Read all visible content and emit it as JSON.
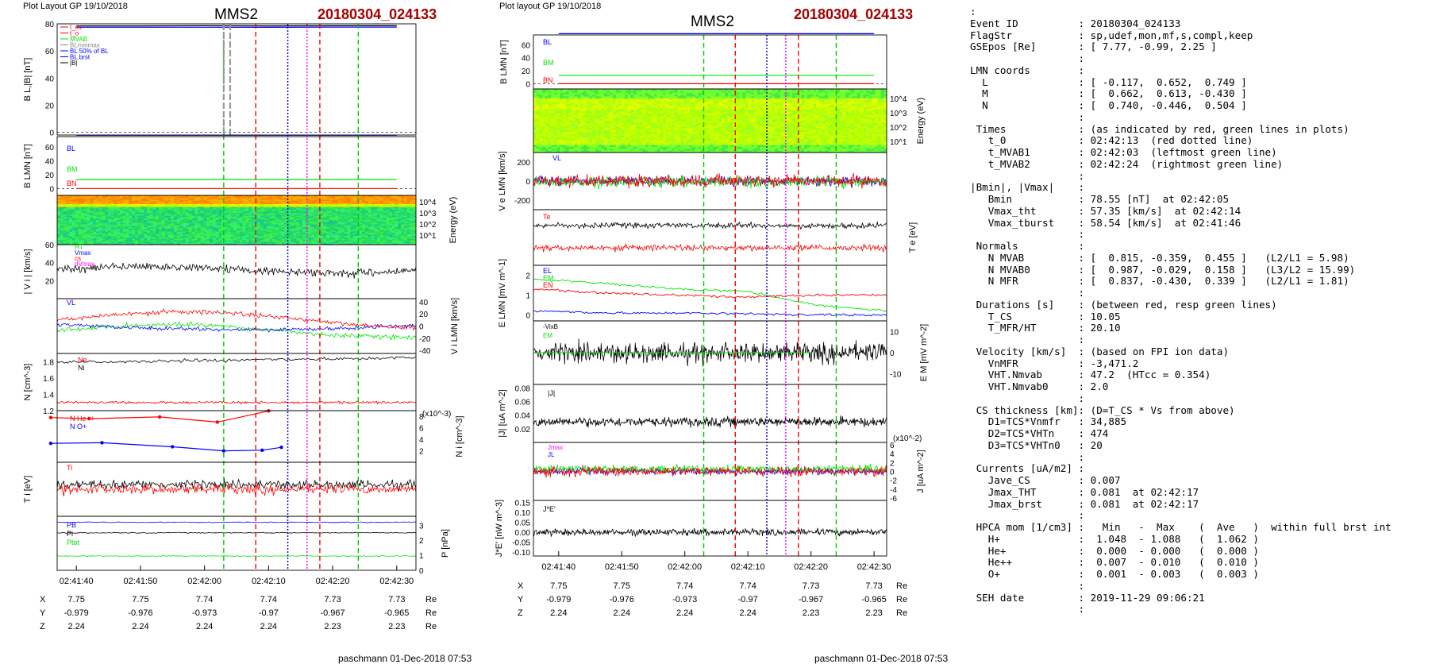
{
  "left_header": {
    "layout": "Plot Layout GP 19/10/2018",
    "spacecraft": "MMS2",
    "event": "20180304_024133"
  },
  "right_header": {
    "layout": "Plot layout GP 19/10/2018",
    "spacecraft": "MMS2",
    "event": "20180304_024133"
  },
  "footers": {
    "left": "paschmann 01-Dec-2018 07:53",
    "right": "paschmann 01-Dec-2018 07:53"
  },
  "colors": {
    "L": "#0000ff",
    "M": "#00e600",
    "N": "#ff0000",
    "black": "#000000",
    "magenta": "#ff00ff",
    "event_title": "#a50000"
  },
  "time_ticks": [
    "02:41:40",
    "02:41:50",
    "02:42:00",
    "02:42:10",
    "02:42:20",
    "02:42:30"
  ],
  "position_table": {
    "labels": [
      "X",
      "Y",
      "Z"
    ],
    "unit": "Re",
    "rows": [
      [
        "7.75",
        "7.75",
        "7.74",
        "7.74",
        "7.73",
        "7.73"
      ],
      [
        "-0.979",
        "-0.976",
        "-0.973",
        "-0.97",
        "-0.967",
        "-0.965"
      ],
      [
        "2.24",
        "2.24",
        "2.24",
        "2.24",
        "2.23",
        "2.23"
      ]
    ]
  },
  "chart_data": [
    {
      "type": "line",
      "figure": "left",
      "x": [
        "02:41:40",
        "02:41:50",
        "02:42:00",
        "02:42:10",
        "02:42:20",
        "02:42:30"
      ],
      "markers": {
        "t_0": "02:42:13",
        "t_MVAB1": "02:42:03",
        "t_MVAB2": "02:42:24",
        "current_sheet": [
          "02:42:08",
          "02:42:18"
        ],
        "burst": [
          "02:42:03",
          "02:42:04"
        ],
        "magenta": "02:42:16"
      },
      "panels": [
        {
          "id": "b-total",
          "ylabel": "B L,|B| [nT]",
          "ylim": [
            -2,
            80
          ],
          "ticks": [
            "80",
            "60",
            "40",
            "20",
            "0"
          ],
          "legend": [
            "t_cs",
            "t_o",
            "MVAB",
            "BLminmax",
            "BL 50% of BL",
            "BL brst",
            "|B|"
          ],
          "series": [
            {
              "name": "BL",
              "color": "blue",
              "values": [
                77.5,
                77.5,
                77.5,
                77.4,
                77.6,
                77.6
              ]
            },
            {
              "name": "|B|",
              "color": "black",
              "values": [
                78.5,
                78.5,
                78.6,
                78.5,
                78.6,
                78.6
              ]
            }
          ]
        },
        {
          "id": "b-lmn",
          "ylabel": "B LMN [nT]",
          "ylim": [
            -10,
            75
          ],
          "ticks": [
            "60",
            "40",
            "20",
            "0"
          ],
          "series": [
            {
              "name": "BL",
              "color": "blue",
              "values": [
                77,
                77,
                77,
                77,
                77,
                77
              ]
            },
            {
              "name": "BM",
              "color": "green",
              "values": [
                13,
                13,
                13,
                13,
                13,
                13
              ]
            },
            {
              "name": "BN",
              "color": "red",
              "values": [
                0,
                0,
                0,
                0,
                0,
                0
              ]
            }
          ]
        },
        {
          "id": "ion-spectrogram",
          "type": "heatmap",
          "ylabel": "Energy (eV)",
          "ticks": [
            "10^4",
            "10^3",
            "10^2",
            "10^1"
          ]
        },
        {
          "id": "vi-mag",
          "ylabel": "| V i | [km/s]",
          "ylim": [
            0,
            60
          ],
          "ticks": [
            "60",
            "40",
            "20"
          ],
          "legend": [
            "HT",
            "Vmax",
            "cs",
            "dVmax"
          ]
        },
        {
          "id": "vi-lmn",
          "ylabel": "V i LMN [km/s]",
          "ylim": [
            -45,
            45
          ],
          "ticks": [
            "40",
            "20",
            "0",
            "-20",
            "-40"
          ]
        },
        {
          "id": "density",
          "ylabel": "N [cm^-3]",
          "ylim": [
            1.2,
            1.9
          ],
          "ticks": [
            "1.8",
            "1.6",
            "1.4",
            "1.2"
          ],
          "legend": [
            "Ne",
            "Ni"
          ]
        },
        {
          "id": "hpca-density",
          "ylabel": "N i [cm^-3]",
          "ylim": [
            0,
            9
          ],
          "ticks": [
            "8",
            "6",
            "4",
            "2"
          ],
          "scale_note": "(x10^-3)",
          "series": [
            {
              "name": "He++",
              "color": "red",
              "x": [
                "02:41:36",
                "02:41:42",
                "02:41:53",
                "02:42:02",
                "02:42:10"
              ],
              "values": [
                7.8,
                7.6,
                7.9,
                7.0,
                9.1
              ]
            },
            {
              "name": "O+",
              "color": "blue",
              "x": [
                "02:41:36",
                "02:41:44",
                "02:41:55",
                "02:42:03",
                "02:42:09",
                "02:42:12"
              ],
              "values": [
                3.3,
                3.4,
                2.7,
                2.0,
                2.1,
                2.6
              ]
            }
          ]
        },
        {
          "id": "ti",
          "ylabel": "T i [eV]",
          "legend": [
            "Ti"
          ]
        },
        {
          "id": "pressure",
          "ylabel": "P [nPa]",
          "ylim": [
            0,
            3.6
          ],
          "ticks": [
            "3",
            "2",
            "1",
            "0"
          ],
          "series": [
            {
              "name": "PB",
              "color": "blue",
              "values": [
                3.2,
                3.2,
                3.2,
                3.2,
                3.2,
                3.2
              ]
            },
            {
              "name": "Pi",
              "color": "black",
              "values": [
                2.5,
                2.5,
                2.5,
                2.5,
                2.5,
                2.5
              ]
            },
            {
              "name": "Ptot",
              "color": "green",
              "values": [
                0.95,
                0.95,
                0.95,
                0.95,
                0.95,
                0.95
              ]
            }
          ]
        }
      ]
    },
    {
      "type": "line",
      "figure": "right",
      "x": [
        "02:41:40",
        "02:41:50",
        "02:42:00",
        "02:42:10",
        "02:42:20",
        "02:42:30"
      ],
      "panels": [
        {
          "id": "b-lmn",
          "ylabel": "B LMN [nT]",
          "ylim": [
            -8,
            75
          ],
          "ticks": [
            "60",
            "40",
            "20",
            "0"
          ],
          "series": [
            {
              "name": "BL",
              "color": "blue",
              "values": [
                77,
                77,
                77,
                77,
                77,
                77
              ]
            },
            {
              "name": "BM",
              "color": "green",
              "values": [
                13,
                13,
                13,
                13,
                13,
                13
              ]
            },
            {
              "name": "BN",
              "color": "red",
              "values": [
                0,
                0,
                0,
                0,
                0,
                0
              ]
            }
          ]
        },
        {
          "id": "electron-spectrogram",
          "type": "heatmap",
          "ylabel": "Energy (eV)",
          "ticks": [
            "10^4",
            "10^3",
            "10^2",
            "10^1"
          ]
        },
        {
          "id": "ve-lmn",
          "ylabel": "V e LMN [km/s]",
          "ylim": [
            -300,
            300
          ],
          "ticks": [
            "200",
            "0",
            "-200"
          ]
        },
        {
          "id": "te",
          "ylabel": "T e [eV]",
          "legend": [
            "Te"
          ]
        },
        {
          "id": "e-lmn",
          "ylabel": "E LMN [mV m^-1]",
          "ylim": [
            -0.3,
            2.5
          ],
          "ticks": [
            "2",
            "1",
            "0"
          ],
          "series": [
            {
              "name": "EL",
              "color": "blue",
              "values": [
                0.2,
                0.1,
                0.1,
                0.05,
                0.0,
                0.0
              ]
            },
            {
              "name": "EM",
              "color": "green",
              "values": [
                1.8,
                1.6,
                1.3,
                1.2,
                0.5,
                0.2
              ]
            },
            {
              "name": "EN",
              "color": "red",
              "values": [
                1.3,
                1.1,
                1.0,
                0.9,
                1.0,
                1.0
              ]
            }
          ]
        },
        {
          "id": "ve-x-b",
          "ylabel": "E M [mV m^-2]",
          "ylim": [
            -15,
            15
          ],
          "ticks": [
            "10",
            "0",
            "-10"
          ],
          "legend": [
            "-VixB",
            "EM"
          ]
        },
        {
          "id": "j-mag",
          "ylabel": "|J| [uA m^-2]",
          "ylim": [
            0,
            0.085
          ],
          "ticks": [
            "0.08",
            "0.06",
            "0.04",
            "0.02"
          ],
          "legend": [
            "|J|"
          ]
        },
        {
          "id": "j-lmn",
          "ylabel": "J [uA m^-2]",
          "ylim": [
            -6.5,
            6.5
          ],
          "ticks": [
            "6",
            "4",
            "2",
            "0",
            "-2",
            "-4",
            "-6"
          ],
          "scale_note": "(x10^-2)",
          "legend": [
            "Jmax",
            "JL"
          ]
        },
        {
          "id": "j-dot-e",
          "ylabel": "J*E' [nW m^-3]",
          "ylim": [
            -0.12,
            0.16
          ],
          "ticks": [
            "0.15",
            "0.10",
            "0.05",
            "0.00",
            "-0.05",
            "-0.10"
          ],
          "legend": [
            "J*E'"
          ]
        }
      ]
    }
  ],
  "info_lines": [
    ":",
    "Event ID          : 20180304_024133",
    "FlagStr           : sp,udef,mon,mf,s,compl,keep",
    "GSEpos [Re]       : [ 7.77, -0.99, 2.25 ]",
    "                  :",
    "LMN coords        :",
    "  L               : [ -0.117,  0.652,  0.749 ]",
    "  M               : [  0.662,  0.613, -0.430 ]",
    "  N               : [  0.740, -0.446,  0.504 ]",
    "                  :",
    " Times            : (as indicated by red, green lines in plots)",
    "   t_0            : 02:42:13  (red dotted line)",
    "   t_MVAB1        : 02:42:03  (leftmost green line)",
    "   t_MVAB2        : 02:42:24  (rightmost green line)",
    "                  :",
    "|Bmin|, |Vmax|    :",
    "   Bmin           : 78.55 [nT]  at 02:42:05",
    "   Vmax_tht       : 57.35 [km/s]  at 02:42:14",
    "   Vmax_tburst    : 58.54 [km/s]  at 02:41:46",
    "                  :",
    " Normals          :",
    "   N MVAB         : [  0.815, -0.359,  0.455 ]   (L2/L1 = 5.98)",
    "   N MVAB0        : [  0.987, -0.029,  0.158 ]   (L3/L2 = 15.99)",
    "   N MFR          : [  0.837, -0.430,  0.339 ]   (L2/L1 = 1.81)",
    "                  :",
    " Durations [s]    : (between red, resp green lines)",
    "   T_CS           : 10.05",
    "   T_MFR/HT       : 20.10",
    "                  :",
    " Velocity [km/s]  : (based on FPI ion data)",
    "   VnMFR          : -3,471.2",
    "   VHT.Nmvab      : 47.2  (HTcc = 0.354)",
    "   VHT.Nmvab0     : 2.0",
    "                  :",
    " CS thickness [km]: (D=T_CS * Vs from above)",
    "   D1=TCS*Vnmfr   : 34,885",
    "   D2=TCS*VHTn    : 474",
    "   D3=TCS*VHTn0   : 20",
    "                  :",
    " Currents [uA/m2] :",
    "   Jave_CS        : 0.007",
    "   Jmax_THT       : 0.081  at 02:42:17",
    "   Jmax_brst      : 0.081  at 02:42:17",
    "                  :",
    " HPCA mom [1/cm3] :   Min   -  Max    (  Ave   )  within full brst int",
    "   H+             :  1.048  - 1.088   (  1.062 )",
    "   He+            :  0.000  - 0.000   (  0.000 )",
    "   He++           :  0.007  - 0.010   (  0.010 )",
    "   O+             :  0.001  - 0.003   (  0.003 )",
    "                  :",
    " SEH date         : 2019-11-29 09:06:21",
    "                  :"
  ]
}
